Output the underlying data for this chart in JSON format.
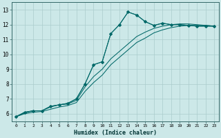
{
  "xlabel": "Humidex (Indice chaleur)",
  "background_color": "#cce8e8",
  "grid_color": "#aacccc",
  "line_color": "#006868",
  "xlim": [
    -0.5,
    23.5
  ],
  "ylim": [
    5.5,
    13.5
  ],
  "xticks": [
    0,
    1,
    2,
    3,
    4,
    5,
    6,
    7,
    8,
    9,
    10,
    11,
    12,
    13,
    14,
    15,
    16,
    17,
    18,
    19,
    20,
    21,
    22,
    23
  ],
  "yticks": [
    6,
    7,
    8,
    9,
    10,
    11,
    12,
    13
  ],
  "series1": [
    5.8,
    6.1,
    6.2,
    6.2,
    6.5,
    6.6,
    6.7,
    7.0,
    8.0,
    9.3,
    9.5,
    11.4,
    12.0,
    12.85,
    12.65,
    12.2,
    11.95,
    12.1,
    12.0,
    12.0,
    11.95,
    11.9,
    11.9,
    11.9
  ],
  "series2": [
    5.8,
    6.1,
    6.2,
    6.2,
    6.5,
    6.6,
    6.7,
    7.0,
    8.0,
    9.3,
    9.5,
    11.4,
    12.0,
    12.85,
    12.65,
    12.2,
    11.95,
    12.1,
    12.0,
    12.0,
    11.95,
    11.9,
    11.9,
    11.9
  ],
  "series3": [
    5.8,
    6.05,
    6.2,
    6.2,
    6.45,
    6.6,
    6.65,
    6.9,
    7.8,
    8.5,
    9.0,
    9.7,
    10.2,
    10.7,
    11.2,
    11.5,
    11.75,
    11.9,
    12.0,
    12.05,
    12.05,
    12.0,
    11.95,
    11.9
  ],
  "series4": [
    5.8,
    6.0,
    6.1,
    6.15,
    6.3,
    6.45,
    6.55,
    6.75,
    7.5,
    8.1,
    8.6,
    9.3,
    9.8,
    10.3,
    10.8,
    11.1,
    11.45,
    11.65,
    11.8,
    11.9,
    11.95,
    11.95,
    11.95,
    11.9
  ]
}
